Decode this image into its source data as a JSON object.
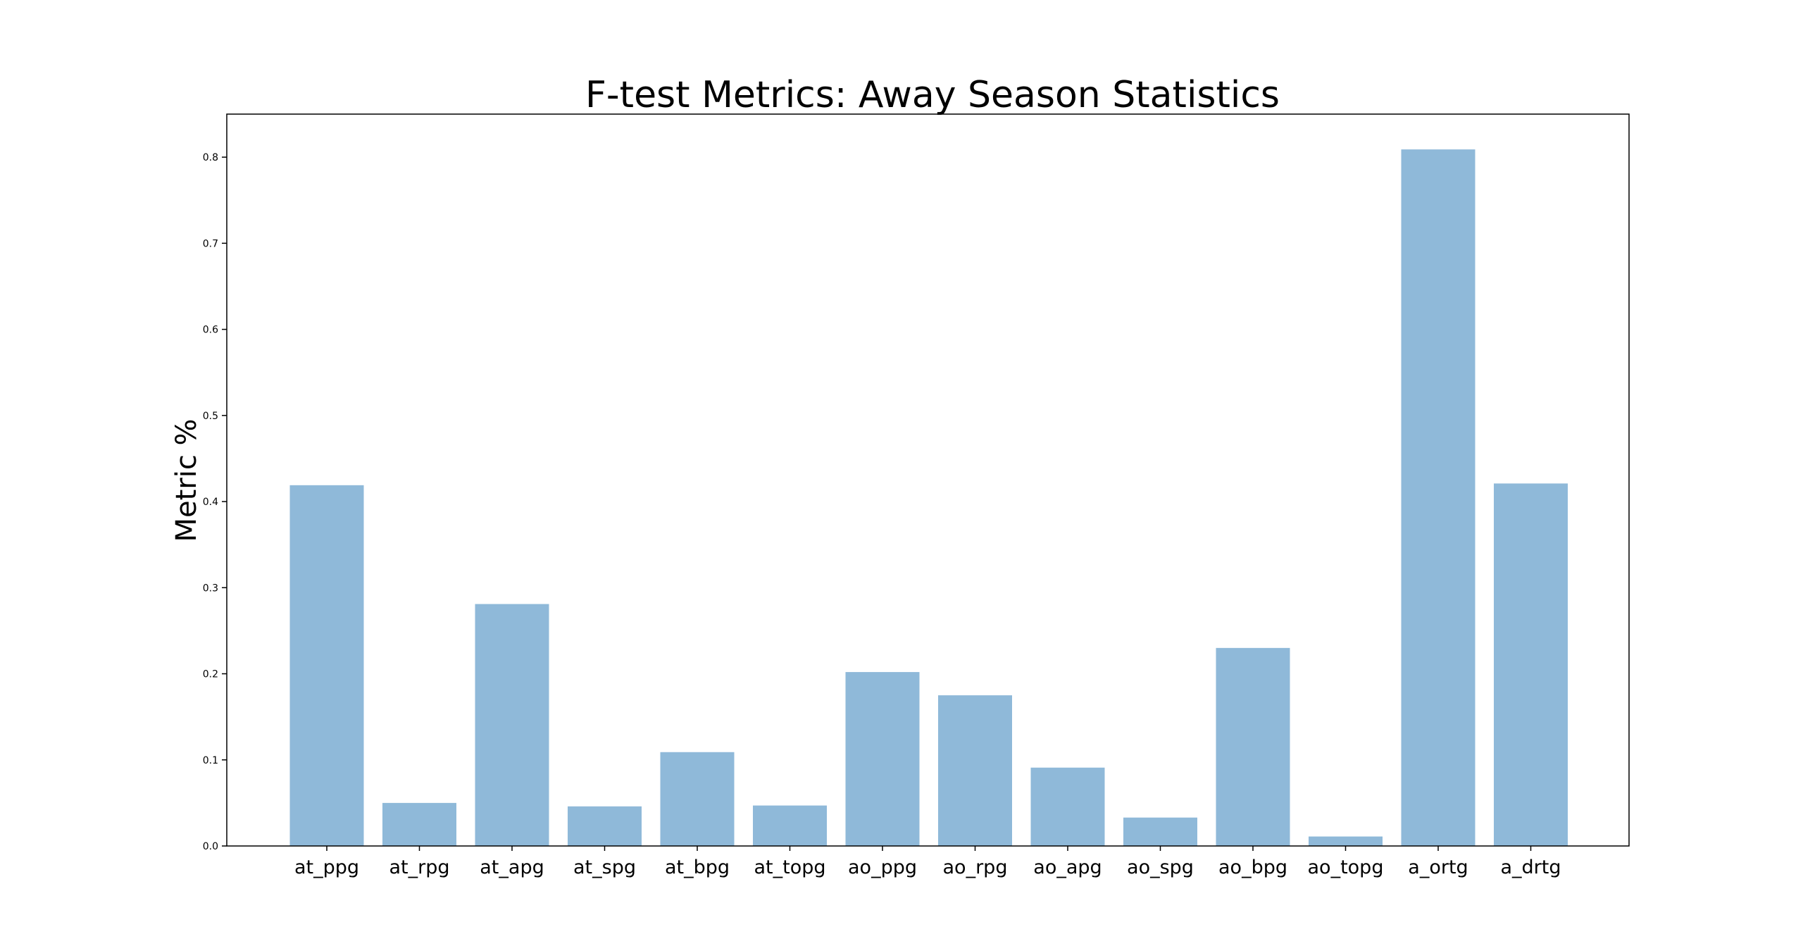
{
  "chart_data": {
    "type": "bar",
    "title": "F-test Metrics: Away Season Statistics",
    "xlabel": "",
    "ylabel": "Metric %",
    "categories": [
      "at_ppg",
      "at_rpg",
      "at_apg",
      "at_spg",
      "at_bpg",
      "at_topg",
      "ao_ppg",
      "ao_rpg",
      "ao_apg",
      "ao_spg",
      "ao_bpg",
      "ao_topg",
      "a_ortg",
      "a_drtg"
    ],
    "values": [
      0.419,
      0.05,
      0.281,
      0.046,
      0.109,
      0.047,
      0.202,
      0.175,
      0.091,
      0.033,
      0.23,
      0.011,
      0.809,
      0.421
    ],
    "yticks": [
      "0.0",
      "0.1",
      "0.2",
      "0.3",
      "0.4",
      "0.5",
      "0.6",
      "0.7",
      "0.8"
    ],
    "ylim": [
      0,
      0.85
    ],
    "grid": false,
    "colors": {
      "bar": "#8fb9d9",
      "axis": "#000000"
    }
  }
}
